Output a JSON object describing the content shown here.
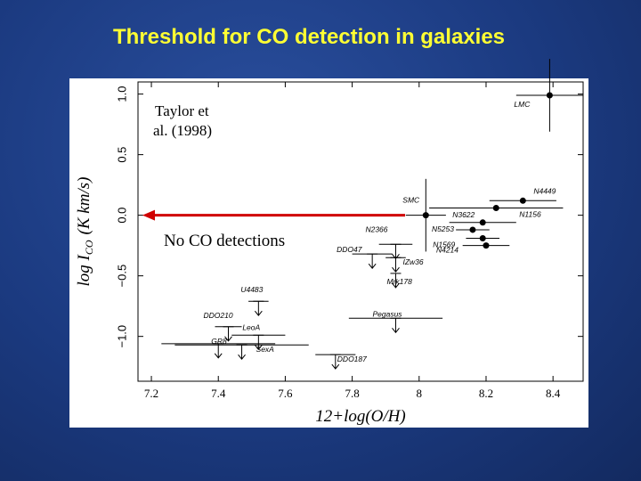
{
  "chart_data": {
    "type": "scatter",
    "title": "Threshold for CO detection in galaxies",
    "xlabel": "12+log(O/H)",
    "ylabel": "log I",
    "ylabel_sub": "CO",
    "ylabel_unit": "(K km/s)",
    "annotations": [
      "Taylor et",
      "al. (1998)",
      "No CO detections"
    ],
    "xlim": [
      7.16,
      8.49
    ],
    "ylim": [
      -1.37,
      1.1
    ],
    "xticks": [
      7.2,
      7.4,
      7.6,
      7.8,
      8.0,
      8.2,
      8.4
    ],
    "yticks": [
      {
        "value": -1,
        "label": "−1.0"
      },
      {
        "value": -0.5,
        "label": "−0.5"
      },
      {
        "value": 0,
        "label": "0.0"
      },
      {
        "value": 0.5,
        "label": "0.5"
      },
      {
        "value": 1,
        "label": "1.0"
      }
    ],
    "threshold": 0,
    "points": [
      {
        "label": "LMC",
        "x": 8.39,
        "y": 0.99,
        "xerr": 0.1,
        "yerr": 0.3,
        "upper_limit": false
      },
      {
        "label": "SMC",
        "x": 8.02,
        "y": 0.0,
        "xerr": 0.06,
        "yerr": 0.3,
        "upper_limit": false
      },
      {
        "label": "N4449",
        "x": 8.31,
        "y": 0.12,
        "xerr": 0.1,
        "upper_limit": false
      },
      {
        "label": "N1156",
        "x": 8.23,
        "y": 0.06,
        "xerr": 0.2,
        "upper_limit": false
      },
      {
        "label": "N3622",
        "x": 8.19,
        "y": -0.06,
        "xerr": 0.1,
        "upper_limit": false
      },
      {
        "label": "N5253",
        "x": 8.16,
        "y": -0.12,
        "xerr": 0.05,
        "upper_limit": false
      },
      {
        "label": "N1569",
        "x": 8.19,
        "y": -0.19,
        "xerr": 0.05,
        "upper_limit": false
      },
      {
        "label": "N4214",
        "x": 8.2,
        "y": -0.25,
        "xerr": 0.07,
        "upper_limit": false
      },
      {
        "label": "N2366",
        "x": 7.93,
        "y": -0.24,
        "xerr": 0.05,
        "upper_limit": true
      },
      {
        "label": "DDO47",
        "x": 7.86,
        "y": -0.32,
        "xerr": 0.06,
        "upper_limit": true
      },
      {
        "label": "IZw36",
        "x": 7.93,
        "y": -0.35,
        "xerr": 0.03,
        "upper_limit": true
      },
      {
        "label": "Mrk178",
        "x": 7.93,
        "y": -0.48,
        "upper_limit": true
      },
      {
        "label": "Pegasus",
        "x": 7.93,
        "y": -0.85,
        "xerr": 0.14,
        "upper_limit": true
      },
      {
        "label": "U4483",
        "x": 7.52,
        "y": -0.71,
        "xerr": 0.03,
        "upper_limit": true
      },
      {
        "label": "DDO210",
        "x": 7.43,
        "y": -0.92,
        "xerr": 0.04,
        "upper_limit": true
      },
      {
        "label": "LeoA",
        "x": 7.52,
        "y": -0.99,
        "xerr": 0.08,
        "upper_limit": true
      },
      {
        "label": "GR8",
        "x": 7.4,
        "y": -1.06,
        "xerr": 0.17,
        "upper_limit": true
      },
      {
        "label": "SexA",
        "x": 7.47,
        "y": -1.07,
        "xerr": 0.2,
        "upper_limit": true
      },
      {
        "label": "DDO187",
        "x": 7.75,
        "y": -1.15,
        "xerr": 0.06,
        "upper_limit": true
      }
    ]
  }
}
